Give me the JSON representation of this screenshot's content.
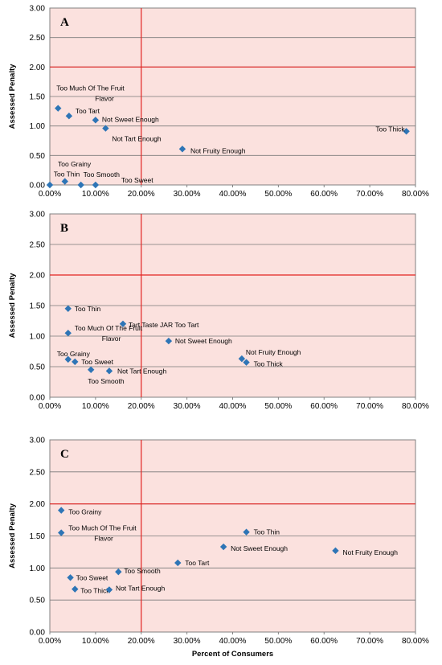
{
  "colors": {
    "plot_background": "#fbe1de",
    "gridline": "#7a7a7a",
    "reference_line": "#e32320",
    "marker": "#2e75b6",
    "axis": "#808080"
  },
  "chart_data": [
    {
      "type": "scatter",
      "panel_label": "A",
      "ylabel": "Assessed Penalty",
      "xlabel": "",
      "xlim": [
        0,
        0.8
      ],
      "ylim": [
        0,
        3
      ],
      "x_ticks": [
        "0.00%",
        "10.00%",
        "20.00%",
        "30.00%",
        "40.00%",
        "50.00%",
        "60.00%",
        "70.00%",
        "80.00%"
      ],
      "y_ticks": [
        "0.00",
        "0.50",
        "1.00",
        "1.50",
        "2.00",
        "2.50",
        "3.00"
      ],
      "reference_lines": {
        "x": 0.2,
        "y": 2.0
      },
      "marker": "diamond",
      "points": [
        {
          "label": "Too Much Of The Fruit Flavor",
          "x": 0.018,
          "y": 1.3
        },
        {
          "label": "Too Tart",
          "x": 0.042,
          "y": 1.17
        },
        {
          "label": "Not Sweet Enough",
          "x": 0.1,
          "y": 1.1
        },
        {
          "label": "Not Tart Enough",
          "x": 0.122,
          "y": 0.96
        },
        {
          "label": "Not Fruity Enough",
          "x": 0.29,
          "y": 0.61
        },
        {
          "label": "Too Thick",
          "x": 0.78,
          "y": 0.91
        },
        {
          "label": "Too Grainy",
          "x": 0.0,
          "y": 0.0
        },
        {
          "label": "Too Thin",
          "x": 0.033,
          "y": 0.06
        },
        {
          "label": "Too Smooth",
          "x": 0.068,
          "y": 0.0
        },
        {
          "label": "Too Sweet",
          "x": 0.1,
          "y": 0.0
        }
      ]
    },
    {
      "type": "scatter",
      "panel_label": "B",
      "ylabel": "Assessed Penalty",
      "xlabel": "",
      "xlim": [
        0,
        0.8
      ],
      "ylim": [
        0,
        3
      ],
      "x_ticks": [
        "0.00%",
        "10.00%",
        "20.00%",
        "30.00%",
        "40.00%",
        "50.00%",
        "60.00%",
        "70.00%",
        "80.00%"
      ],
      "y_ticks": [
        "0.00",
        "0.50",
        "1.00",
        "1.50",
        "2.00",
        "2.50",
        "3.00"
      ],
      "reference_lines": {
        "x": 0.2,
        "y": 2.0
      },
      "marker": "diamond",
      "points": [
        {
          "label": "Too Thin",
          "x": 0.04,
          "y": 1.45
        },
        {
          "label": "Tart Taste JAR Too Tart",
          "x": 0.16,
          "y": 1.2
        },
        {
          "label": "Too Much Of The Fruit Flavor",
          "x": 0.04,
          "y": 1.05
        },
        {
          "label": "Not Sweet Enough",
          "x": 0.26,
          "y": 0.92
        },
        {
          "label": "Not Fruity Enough",
          "x": 0.42,
          "y": 0.63
        },
        {
          "label": "Too Thick",
          "x": 0.43,
          "y": 0.57
        },
        {
          "label": "Too Grainy",
          "x": 0.04,
          "y": 0.62
        },
        {
          "label": "Too Sweet",
          "x": 0.055,
          "y": 0.58
        },
        {
          "label": "Too Smooth",
          "x": 0.09,
          "y": 0.45
        },
        {
          "label": "Not Tart Enough",
          "x": 0.13,
          "y": 0.43
        }
      ]
    },
    {
      "type": "scatter",
      "panel_label": "C",
      "ylabel": "Assessed Penalty",
      "xlabel": "Percent of Consumers",
      "xlim": [
        0,
        0.8
      ],
      "ylim": [
        0,
        3
      ],
      "x_ticks": [
        "0.00%",
        "10.00%",
        "20.00%",
        "30.00%",
        "40.00%",
        "50.00%",
        "60.00%",
        "70.00%",
        "80.00%"
      ],
      "y_ticks": [
        "0.00",
        "0.50",
        "1.00",
        "1.50",
        "2.00",
        "2.50",
        "3.00"
      ],
      "reference_lines": {
        "x": 0.2,
        "y": 2.0
      },
      "marker": "diamond",
      "points": [
        {
          "label": "Too Grainy",
          "x": 0.025,
          "y": 1.9
        },
        {
          "label": "Too Much Of The Fruit Flavor",
          "x": 0.025,
          "y": 1.55
        },
        {
          "label": "Too Thin",
          "x": 0.43,
          "y": 1.56
        },
        {
          "label": "Not Sweet Enough",
          "x": 0.38,
          "y": 1.33
        },
        {
          "label": "Not Fruity Enough",
          "x": 0.625,
          "y": 1.27
        },
        {
          "label": "Too Tart",
          "x": 0.28,
          "y": 1.08
        },
        {
          "label": "Too Smooth",
          "x": 0.15,
          "y": 0.94
        },
        {
          "label": "Too Sweet",
          "x": 0.045,
          "y": 0.85
        },
        {
          "label": "Too Thick",
          "x": 0.055,
          "y": 0.67
        },
        {
          "label": "Not Tart Enough",
          "x": 0.13,
          "y": 0.66
        }
      ]
    }
  ]
}
